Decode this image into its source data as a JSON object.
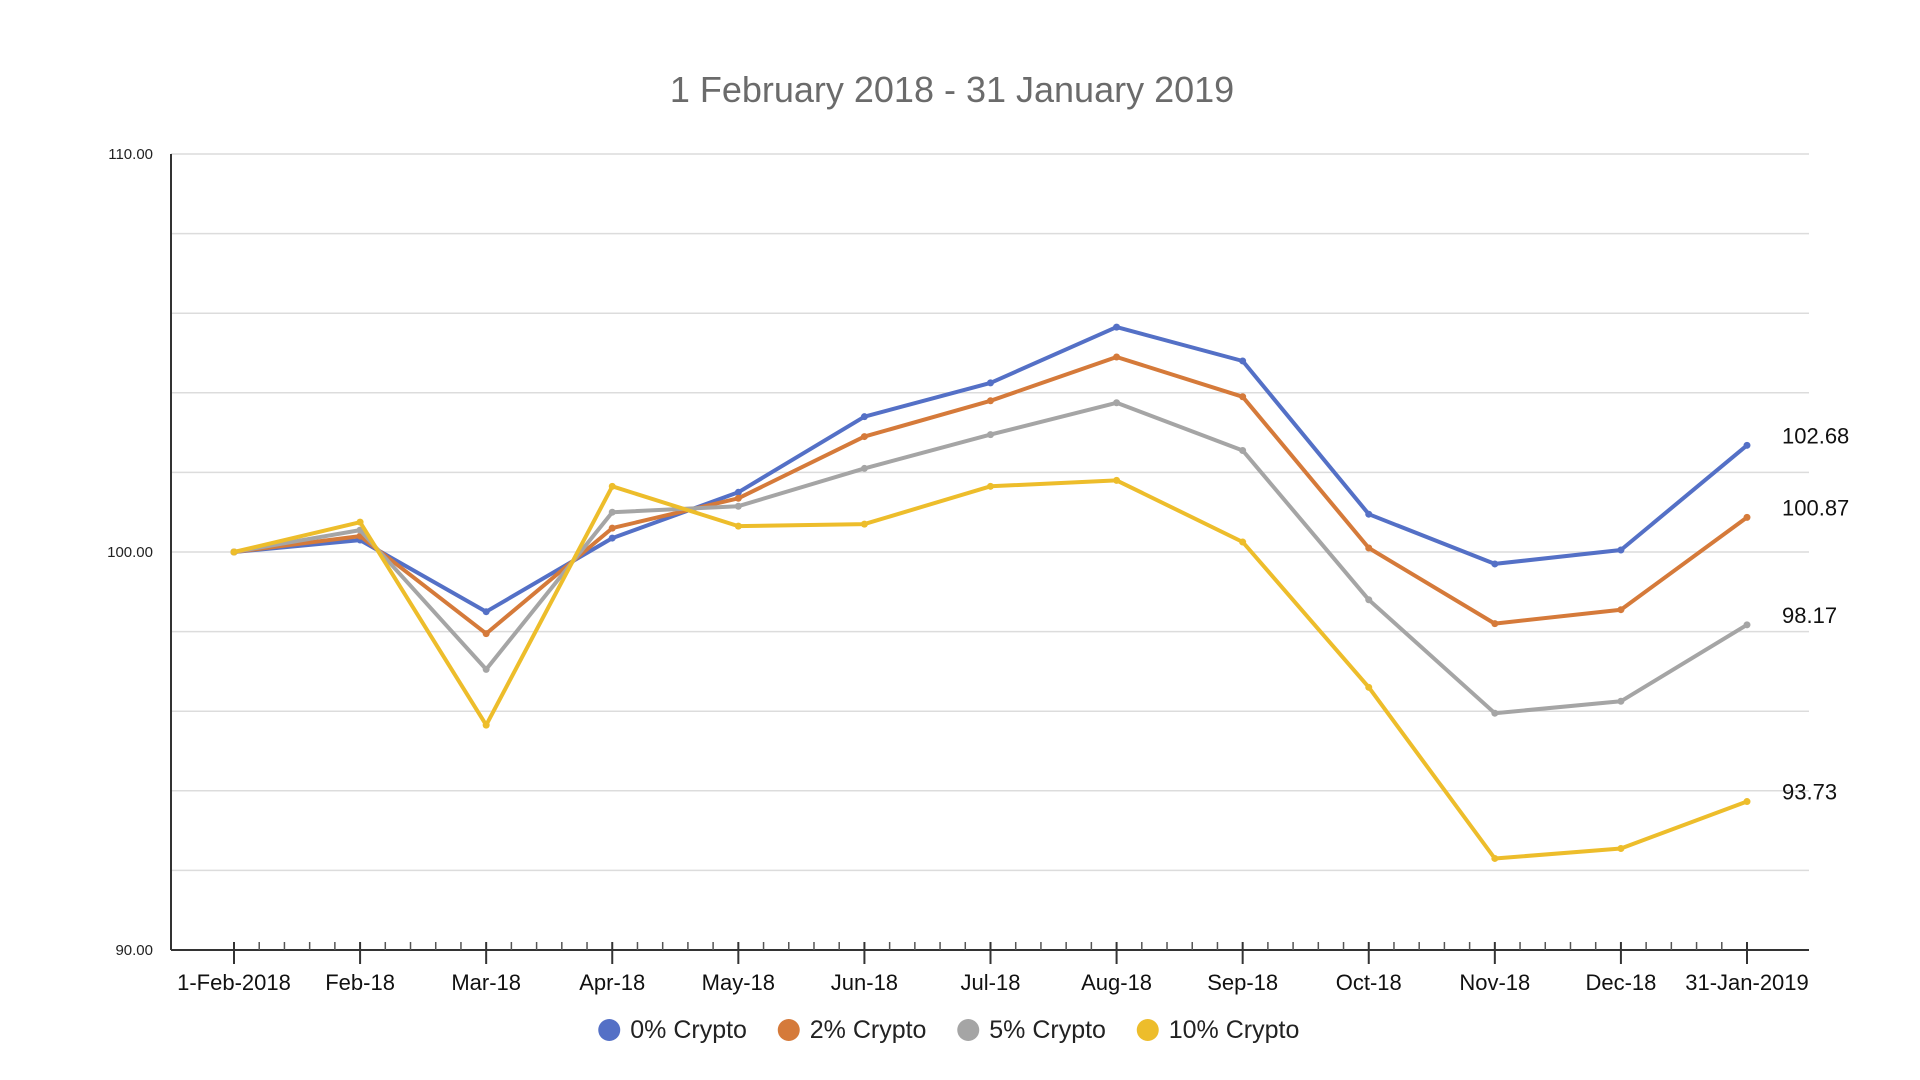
{
  "chart_data": {
    "type": "line",
    "title": "1 February 2018 - 31 January 2019",
    "xlabel": "",
    "ylabel": "",
    "ylim": [
      90,
      110
    ],
    "y_ticks": [
      {
        "value": 90,
        "label": "90.00"
      },
      {
        "value": 100,
        "label": "100.00"
      },
      {
        "value": 110,
        "label": "110.00"
      }
    ],
    "y_gridlines": [
      92,
      94,
      96,
      98,
      100,
      102,
      104,
      106,
      108,
      110
    ],
    "grid": true,
    "legend_position": "bottom-center",
    "categories": [
      "1-Feb-2018",
      "Feb-18",
      "Mar-18",
      "Apr-18",
      "May-18",
      "Jun-18",
      "Jul-18",
      "Aug-18",
      "Sep-18",
      "Oct-18",
      "Nov-18",
      "Dec-18",
      "31-Jan-2019"
    ],
    "series": [
      {
        "name": "0% Crypto",
        "color": "#5470c6",
        "values": [
          100.0,
          100.3,
          98.5,
          100.35,
          101.5,
          103.4,
          104.25,
          105.65,
          104.8,
          100.95,
          99.7,
          100.05,
          102.68
        ],
        "end_label": "102.68"
      },
      {
        "name": "2% Crypto",
        "color": "#d57a3a",
        "values": [
          100.0,
          100.4,
          97.95,
          100.6,
          101.35,
          102.9,
          103.8,
          104.9,
          103.9,
          100.1,
          98.2,
          98.55,
          100.87
        ],
        "end_label": "100.87"
      },
      {
        "name": "5% Crypto",
        "color": "#a5a5a5",
        "values": [
          100.0,
          100.55,
          97.05,
          101.0,
          101.15,
          102.1,
          102.95,
          103.75,
          102.55,
          98.8,
          95.95,
          96.25,
          98.17
        ],
        "end_label": "98.17"
      },
      {
        "name": "10% Crypto",
        "color": "#edbd2b",
        "values": [
          100.0,
          100.75,
          95.65,
          101.65,
          100.65,
          100.7,
          101.65,
          101.8,
          100.25,
          96.6,
          92.3,
          92.55,
          93.73
        ],
        "end_label": "93.73"
      }
    ]
  }
}
